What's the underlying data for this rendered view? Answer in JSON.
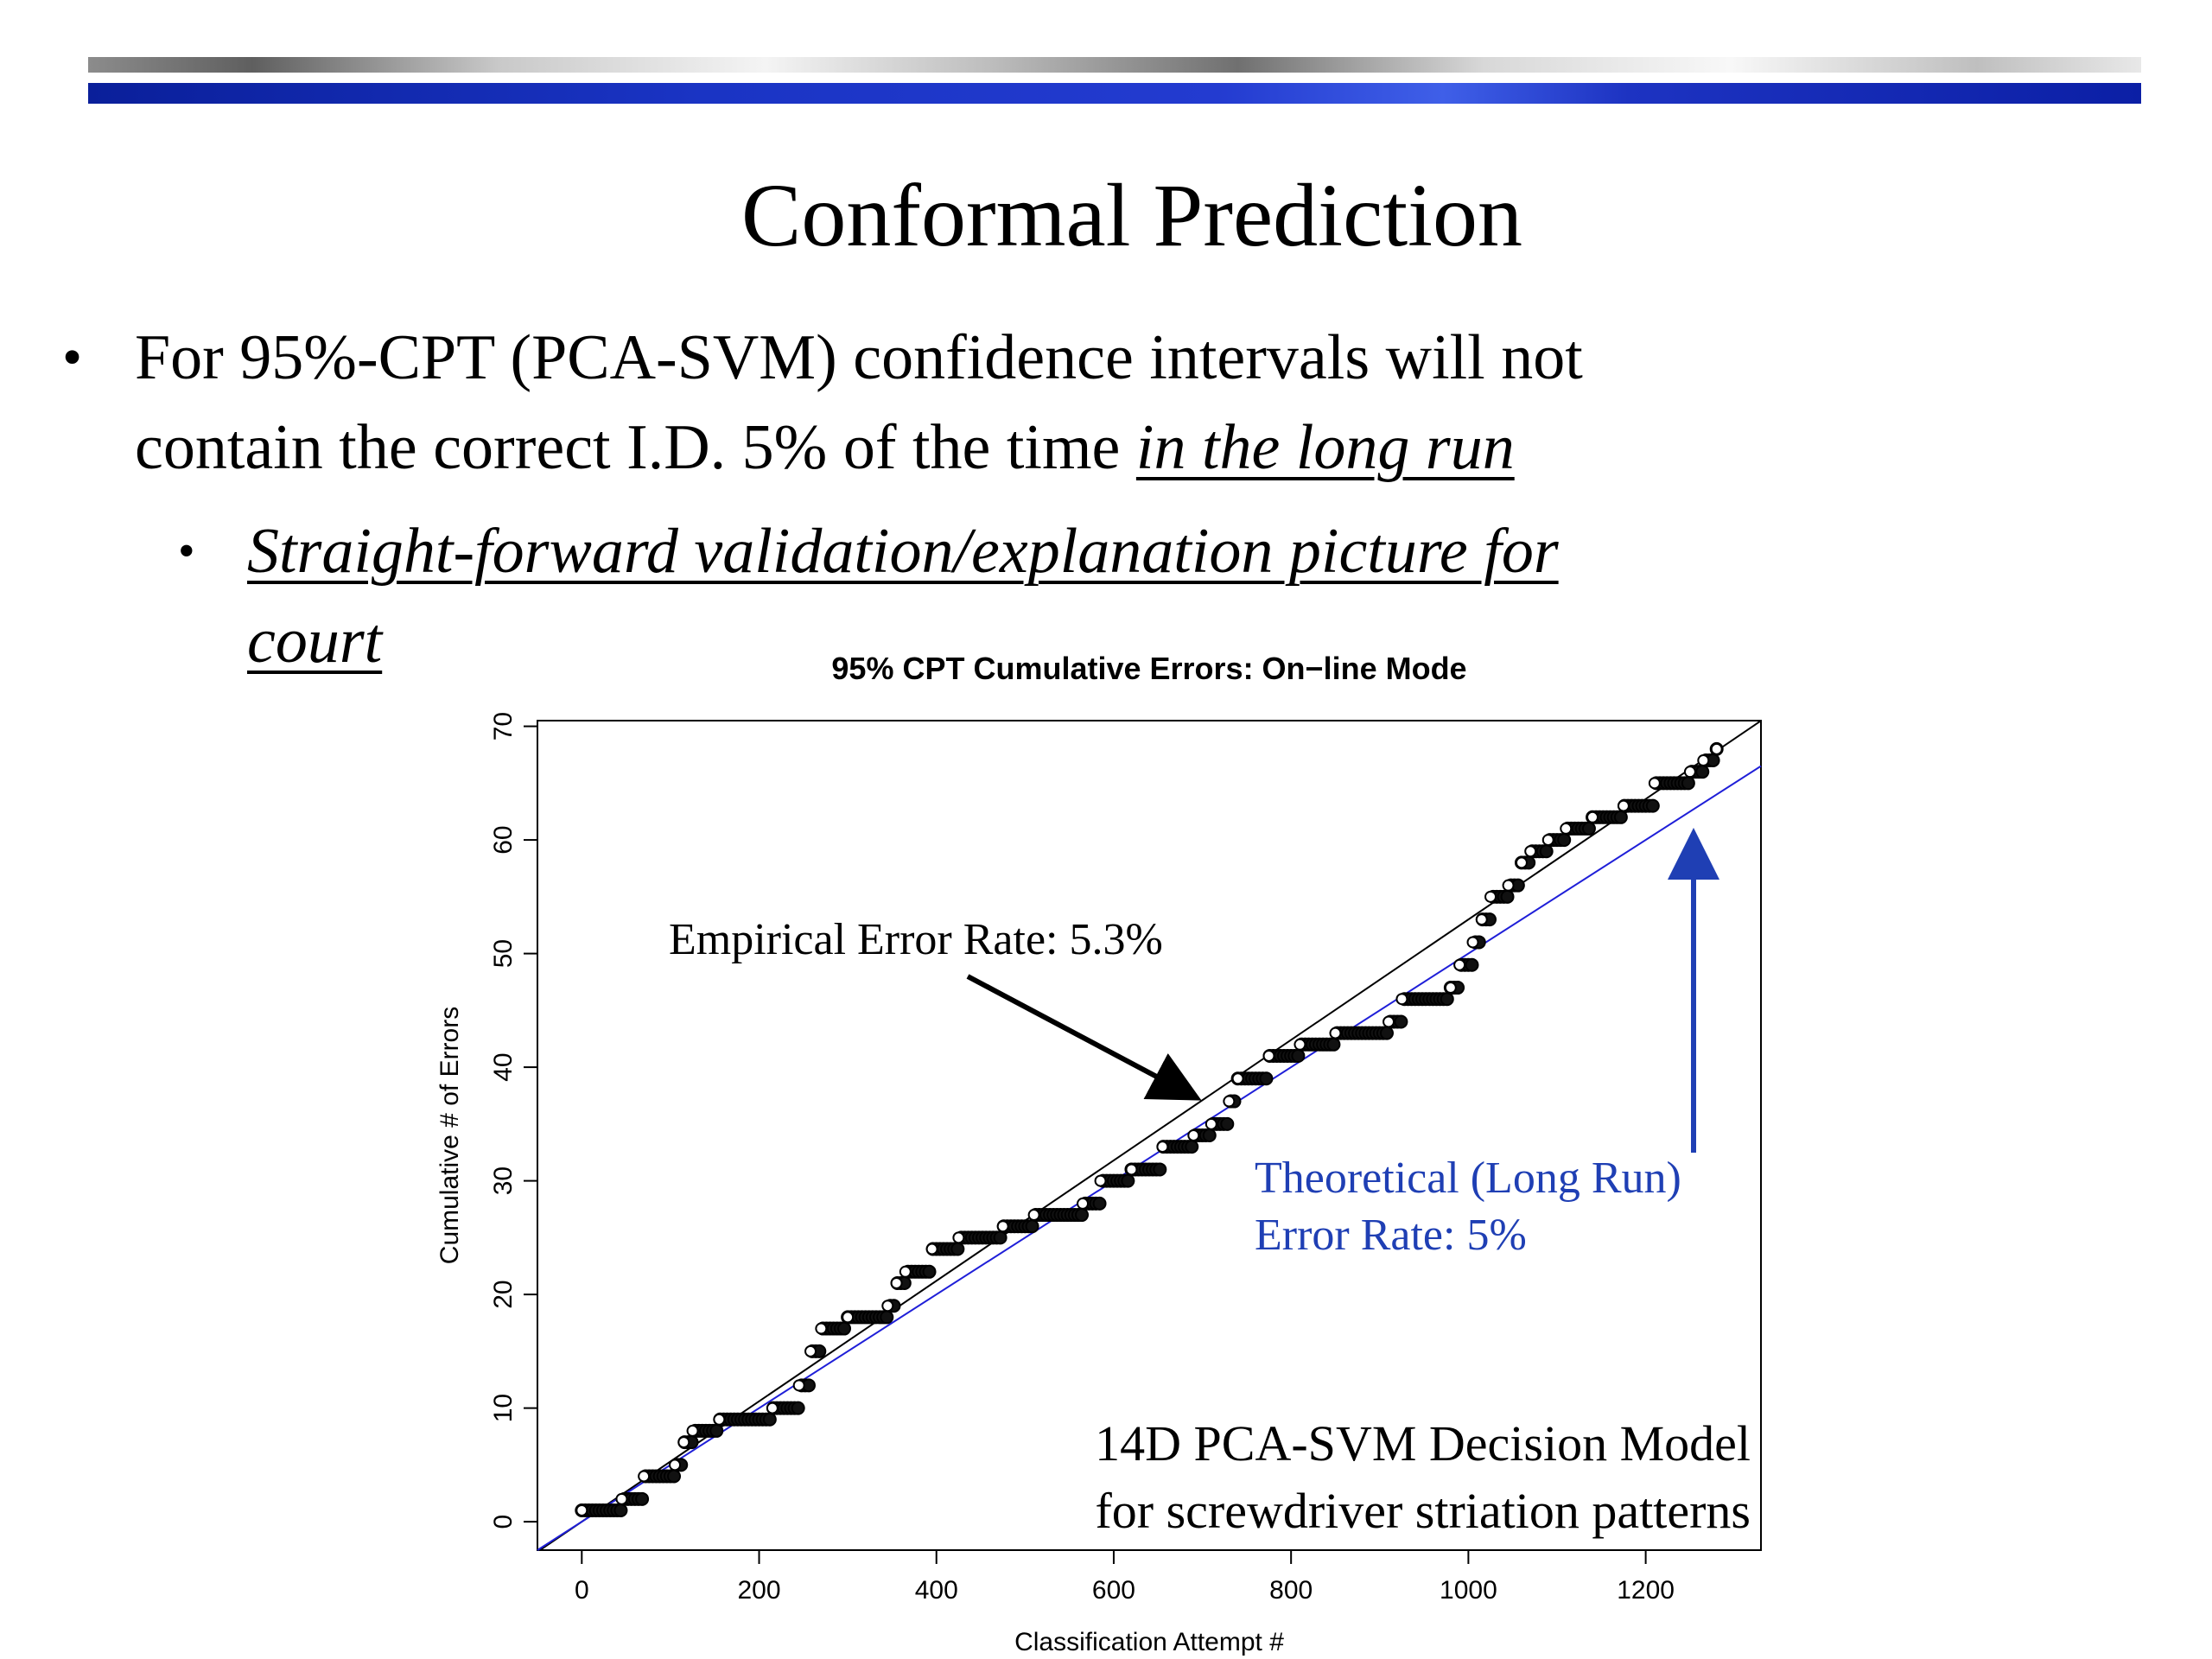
{
  "slide": {
    "title": "Conformal Prediction",
    "bullet1": {
      "line1": "For 95%-CPT (PCA-SVM) confidence intervals will not",
      "line2_plain": "contain the correct I.D. 5% of the time ",
      "line2_emphasis": "in the long run"
    },
    "bullet2": {
      "line1": "Straight-forward validation/explanation picture for",
      "line2": "court"
    },
    "bullet_glyph": "•"
  },
  "chart_data": {
    "type": "scatter",
    "title": "95% CPT Cumulative Errors: On−line Mode",
    "xlabel": "Classification Attempt #",
    "ylabel": "Cumulative # of Errors",
    "xlim": [
      -50,
      1330
    ],
    "ylim": [
      -2.5,
      70.5
    ],
    "x_ticks": [
      0,
      200,
      400,
      600,
      800,
      1000,
      1200
    ],
    "y_ticks": [
      0,
      10,
      20,
      30,
      40,
      50,
      60,
      70
    ],
    "series": [
      {
        "kind": "step",
        "color": "#000000",
        "n_attempts": 1280,
        "error_steps": [
          [
            0,
            1
          ],
          [
            45,
            2
          ],
          [
            70,
            4
          ],
          [
            105,
            5
          ],
          [
            115,
            7
          ],
          [
            125,
            8
          ],
          [
            155,
            9
          ],
          [
            215,
            10
          ],
          [
            245,
            12
          ],
          [
            258,
            15
          ],
          [
            270,
            17
          ],
          [
            300,
            18
          ],
          [
            345,
            19
          ],
          [
            355,
            21
          ],
          [
            365,
            22
          ],
          [
            395,
            24
          ],
          [
            425,
            25
          ],
          [
            475,
            26
          ],
          [
            510,
            27
          ],
          [
            565,
            28
          ],
          [
            585,
            30
          ],
          [
            620,
            31
          ],
          [
            655,
            33
          ],
          [
            690,
            34
          ],
          [
            710,
            35
          ],
          [
            730,
            37
          ],
          [
            740,
            39
          ],
          [
            775,
            41
          ],
          [
            810,
            42
          ],
          [
            850,
            43
          ],
          [
            910,
            44
          ],
          [
            925,
            46
          ],
          [
            980,
            47
          ],
          [
            990,
            49
          ],
          [
            1005,
            51
          ],
          [
            1015,
            53
          ],
          [
            1025,
            55
          ],
          [
            1045,
            56
          ],
          [
            1060,
            58
          ],
          [
            1070,
            59
          ],
          [
            1090,
            60
          ],
          [
            1110,
            61
          ],
          [
            1140,
            62
          ],
          [
            1175,
            63
          ],
          [
            1210,
            65
          ],
          [
            1250,
            66
          ],
          [
            1265,
            67
          ],
          [
            1280,
            68
          ]
        ]
      },
      {
        "kind": "line",
        "color": "#000000",
        "slope": 0.053,
        "intercept": 0
      },
      {
        "kind": "line",
        "color": "#1f1fd8",
        "slope": 0.05,
        "intercept": 0
      }
    ],
    "annotations": {
      "empirical": "Empirical Error Rate: 5.3%",
      "theoretical_line1": "Theoretical (Long Run)",
      "theoretical_line2": "Error Rate: 5%",
      "model_line1": "14D PCA-SVM Decision Model",
      "model_line2": "for screwdriver striation patterns"
    },
    "grid": false,
    "annotation_color": "#1f3fb4"
  }
}
